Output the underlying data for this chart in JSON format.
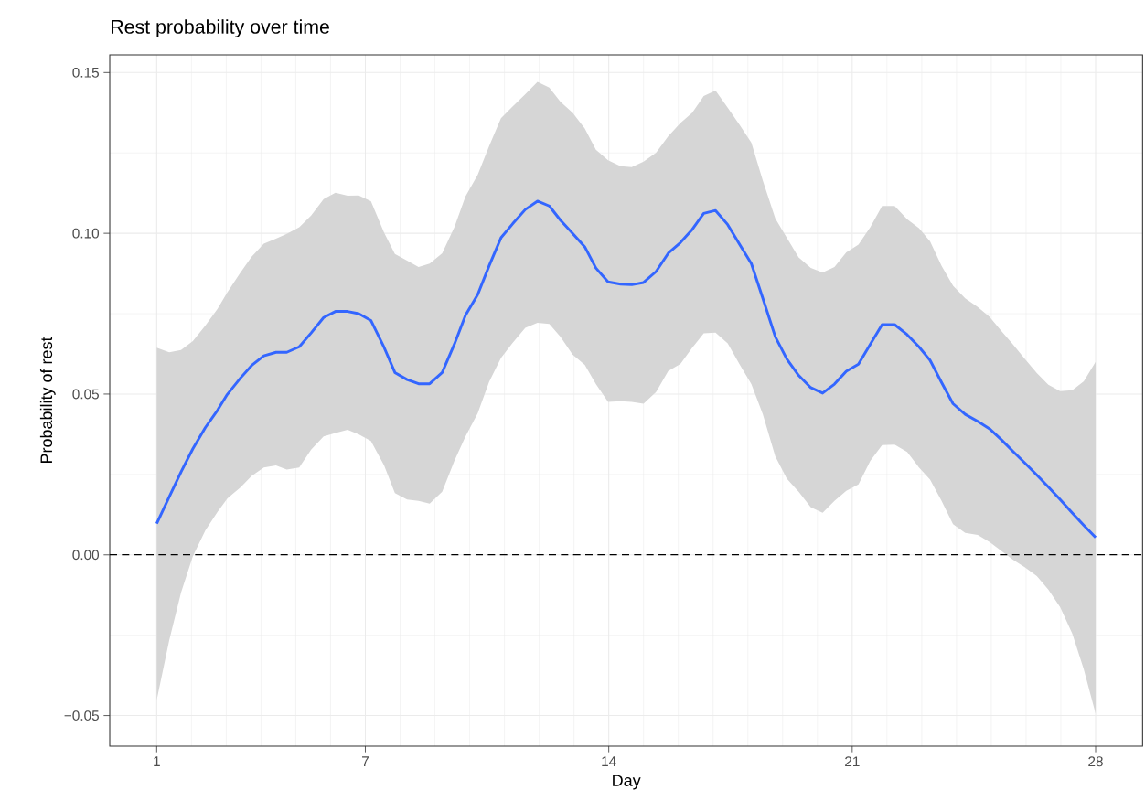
{
  "chart_data": {
    "type": "line",
    "title": "Rest probability over time",
    "xlabel": "Day",
    "ylabel": "Probability of rest",
    "x": [
      1,
      1.36,
      1.7,
      2.04,
      2.4,
      2.75,
      3.03,
      3.41,
      3.73,
      4.08,
      4.43,
      4.74,
      5.1,
      5.44,
      5.8,
      6.14,
      6.49,
      6.81,
      7.16,
      7.54,
      7.85,
      8.2,
      8.53,
      8.85,
      9.21,
      9.56,
      9.88,
      10.23,
      10.56,
      10.9,
      11.24,
      11.6,
      11.95,
      12.29,
      12.61,
      12.96,
      13.31,
      13.63,
      13.98,
      14.34,
      14.66,
      15.0,
      15.36,
      15.71,
      16.06,
      16.4,
      16.73,
      17.07,
      17.42,
      17.77,
      18.1,
      18.43,
      18.79,
      19.12,
      19.46,
      19.81,
      20.15,
      20.49,
      20.83,
      21.18,
      21.52,
      21.86,
      22.22,
      22.58,
      22.92,
      23.24,
      23.57,
      23.9,
      24.25,
      24.61,
      24.95,
      25.29,
      25.62,
      25.97,
      26.31,
      26.64,
      26.98,
      27.33,
      27.66,
      28
    ],
    "series": [
      {
        "color": "#3366ff",
        "values": [
          0.0097,
          0.018,
          0.0258,
          0.033,
          0.0396,
          0.045,
          0.0499,
          0.055,
          0.0589,
          0.0619,
          0.063,
          0.063,
          0.0647,
          0.069,
          0.0738,
          0.0757,
          0.0757,
          0.075,
          0.0729,
          0.0645,
          0.0567,
          0.0545,
          0.0532,
          0.0532,
          0.0567,
          0.0655,
          0.0745,
          0.0809,
          0.0899,
          0.0986,
          0.103,
          0.1074,
          0.11,
          0.1085,
          0.1041,
          0.1,
          0.0958,
          0.0892,
          0.0849,
          0.0842,
          0.084,
          0.0847,
          0.0881,
          0.0938,
          0.0971,
          0.1012,
          0.1062,
          0.1071,
          0.1027,
          0.0964,
          0.0906,
          0.0798,
          0.0678,
          0.0609,
          0.0558,
          0.052,
          0.0503,
          0.0531,
          0.0571,
          0.0593,
          0.0655,
          0.0716,
          0.0716,
          0.0685,
          0.0647,
          0.0605,
          0.0536,
          0.047,
          0.0437,
          0.0415,
          0.0392,
          0.0358,
          0.0322,
          0.0285,
          0.0248,
          0.0211,
          0.0172,
          0.013,
          0.0092,
          0.0054
        ],
        "lower": [
          -0.0452,
          -0.0266,
          -0.0117,
          -0.0004,
          0.0076,
          0.0134,
          0.0175,
          0.021,
          0.0245,
          0.0272,
          0.0278,
          0.0265,
          0.0272,
          0.0327,
          0.0368,
          0.0379,
          0.0389,
          0.0375,
          0.0354,
          0.0278,
          0.0192,
          0.0172,
          0.0168,
          0.0159,
          0.0196,
          0.0292,
          0.0368,
          0.044,
          0.0538,
          0.0612,
          0.066,
          0.0706,
          0.0722,
          0.0718,
          0.0678,
          0.0623,
          0.0591,
          0.0531,
          0.0476,
          0.0478,
          0.0476,
          0.047,
          0.0506,
          0.0572,
          0.0594,
          0.0644,
          0.0689,
          0.0691,
          0.0658,
          0.0591,
          0.0531,
          0.0437,
          0.0306,
          0.0237,
          0.0196,
          0.0148,
          0.0131,
          0.0168,
          0.0199,
          0.0219,
          0.0292,
          0.0341,
          0.0343,
          0.032,
          0.0272,
          0.0234,
          0.0168,
          0.0095,
          0.0068,
          0.0062,
          0.004,
          0.0012,
          -0.0015,
          -0.0039,
          -0.0066,
          -0.0108,
          -0.0163,
          -0.0245,
          -0.0356,
          -0.0494
        ],
        "upper": [
          0.0644,
          0.063,
          0.0637,
          0.0665,
          0.0713,
          0.0765,
          0.0816,
          0.0878,
          0.0927,
          0.0968,
          0.0983,
          0.0998,
          0.1019,
          0.1055,
          0.1106,
          0.1126,
          0.1117,
          0.1118,
          0.11,
          0.1002,
          0.0936,
          0.0915,
          0.0895,
          0.0906,
          0.0938,
          0.1019,
          0.1115,
          0.1182,
          0.1271,
          0.1358,
          0.1395,
          0.1433,
          0.1471,
          0.1453,
          0.1409,
          0.1375,
          0.1326,
          0.126,
          0.1227,
          0.1209,
          0.1206,
          0.1223,
          0.1251,
          0.1302,
          0.1343,
          0.1375,
          0.1427,
          0.1444,
          0.1391,
          0.1336,
          0.1282,
          0.1164,
          0.1046,
          0.0986,
          0.0925,
          0.0892,
          0.0878,
          0.0895,
          0.0941,
          0.0965,
          0.1019,
          0.1085,
          0.1085,
          0.1044,
          0.1016,
          0.0975,
          0.0899,
          0.0837,
          0.0798,
          0.0771,
          0.074,
          0.0696,
          0.0655,
          0.0609,
          0.0565,
          0.0529,
          0.0509,
          0.0512,
          0.054,
          0.06
        ]
      }
    ],
    "xlim": [
      -0.35,
      29.35
    ],
    "ylim": [
      -0.0595,
      0.1555
    ],
    "xticks": [
      1,
      7,
      14,
      21,
      28
    ],
    "yticks": [
      {
        "value": -0.05,
        "label": "−0.05"
      },
      {
        "value": 0,
        "label": "0.00"
      },
      {
        "value": 0.05,
        "label": "0.05"
      },
      {
        "value": 0.1,
        "label": "0.10"
      },
      {
        "value": 0.15,
        "label": "0.15"
      }
    ],
    "ref_lines": [
      {
        "axis": "y",
        "value": 0,
        "color": "#000000",
        "line_style": "dashed"
      }
    ],
    "grid": true,
    "marker": "none",
    "line_style": "solid"
  }
}
